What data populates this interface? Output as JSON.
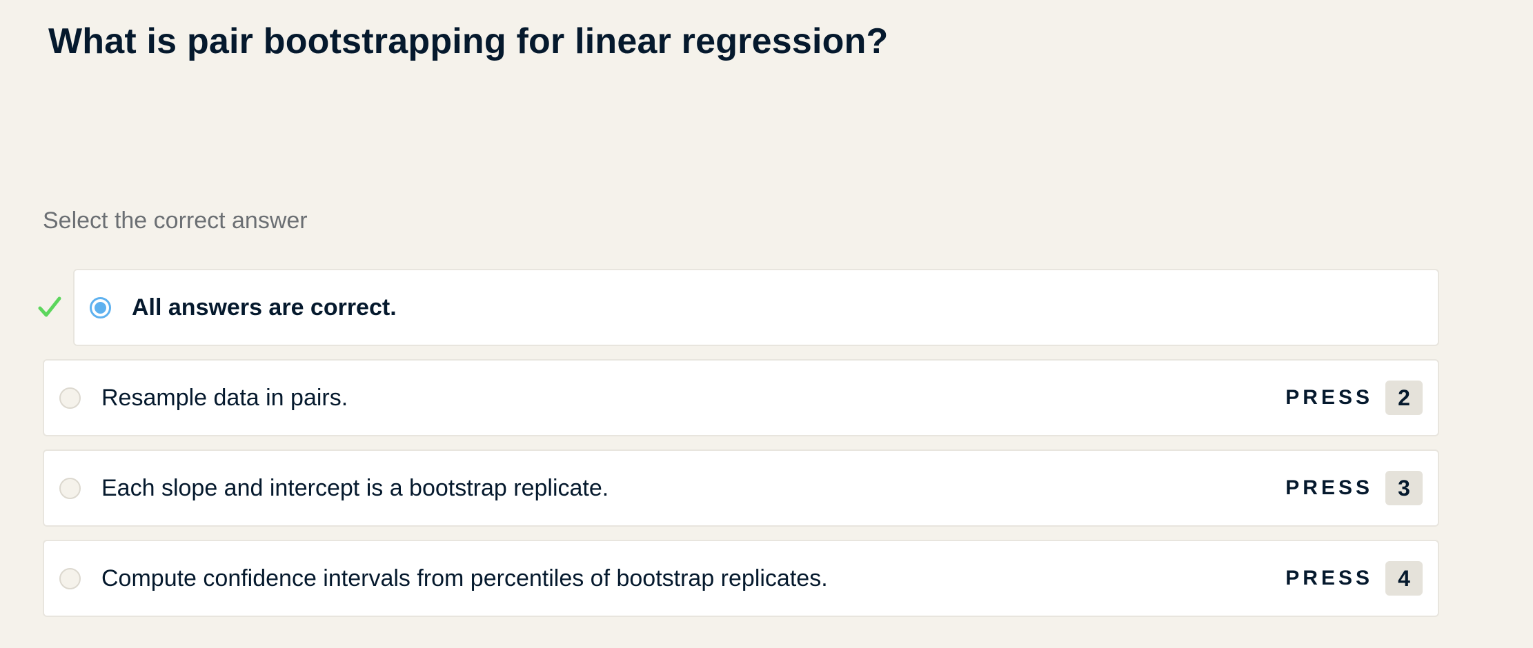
{
  "question": {
    "title": "What is pair bootstrapping for linear regression?"
  },
  "prompt": "Select the correct answer",
  "colors": {
    "background": "#f5f2eb",
    "text": "#05192d",
    "muted": "#6b6f73",
    "selected_radio": "#5eb1ef",
    "correct_check": "#5cd65c",
    "key_badge": "#e5e2da"
  },
  "options": [
    {
      "label": "All answers are correct.",
      "selected": true,
      "correct": true,
      "icon": "check-icon"
    },
    {
      "label": "Resample data in pairs.",
      "press_label": "PRESS",
      "key": "2",
      "selected": false
    },
    {
      "label": "Each slope and intercept is a bootstrap replicate.",
      "press_label": "PRESS",
      "key": "3",
      "selected": false
    },
    {
      "label": "Compute confidence intervals from percentiles of bootstrap replicates.",
      "press_label": "PRESS",
      "key": "4",
      "selected": false
    }
  ]
}
